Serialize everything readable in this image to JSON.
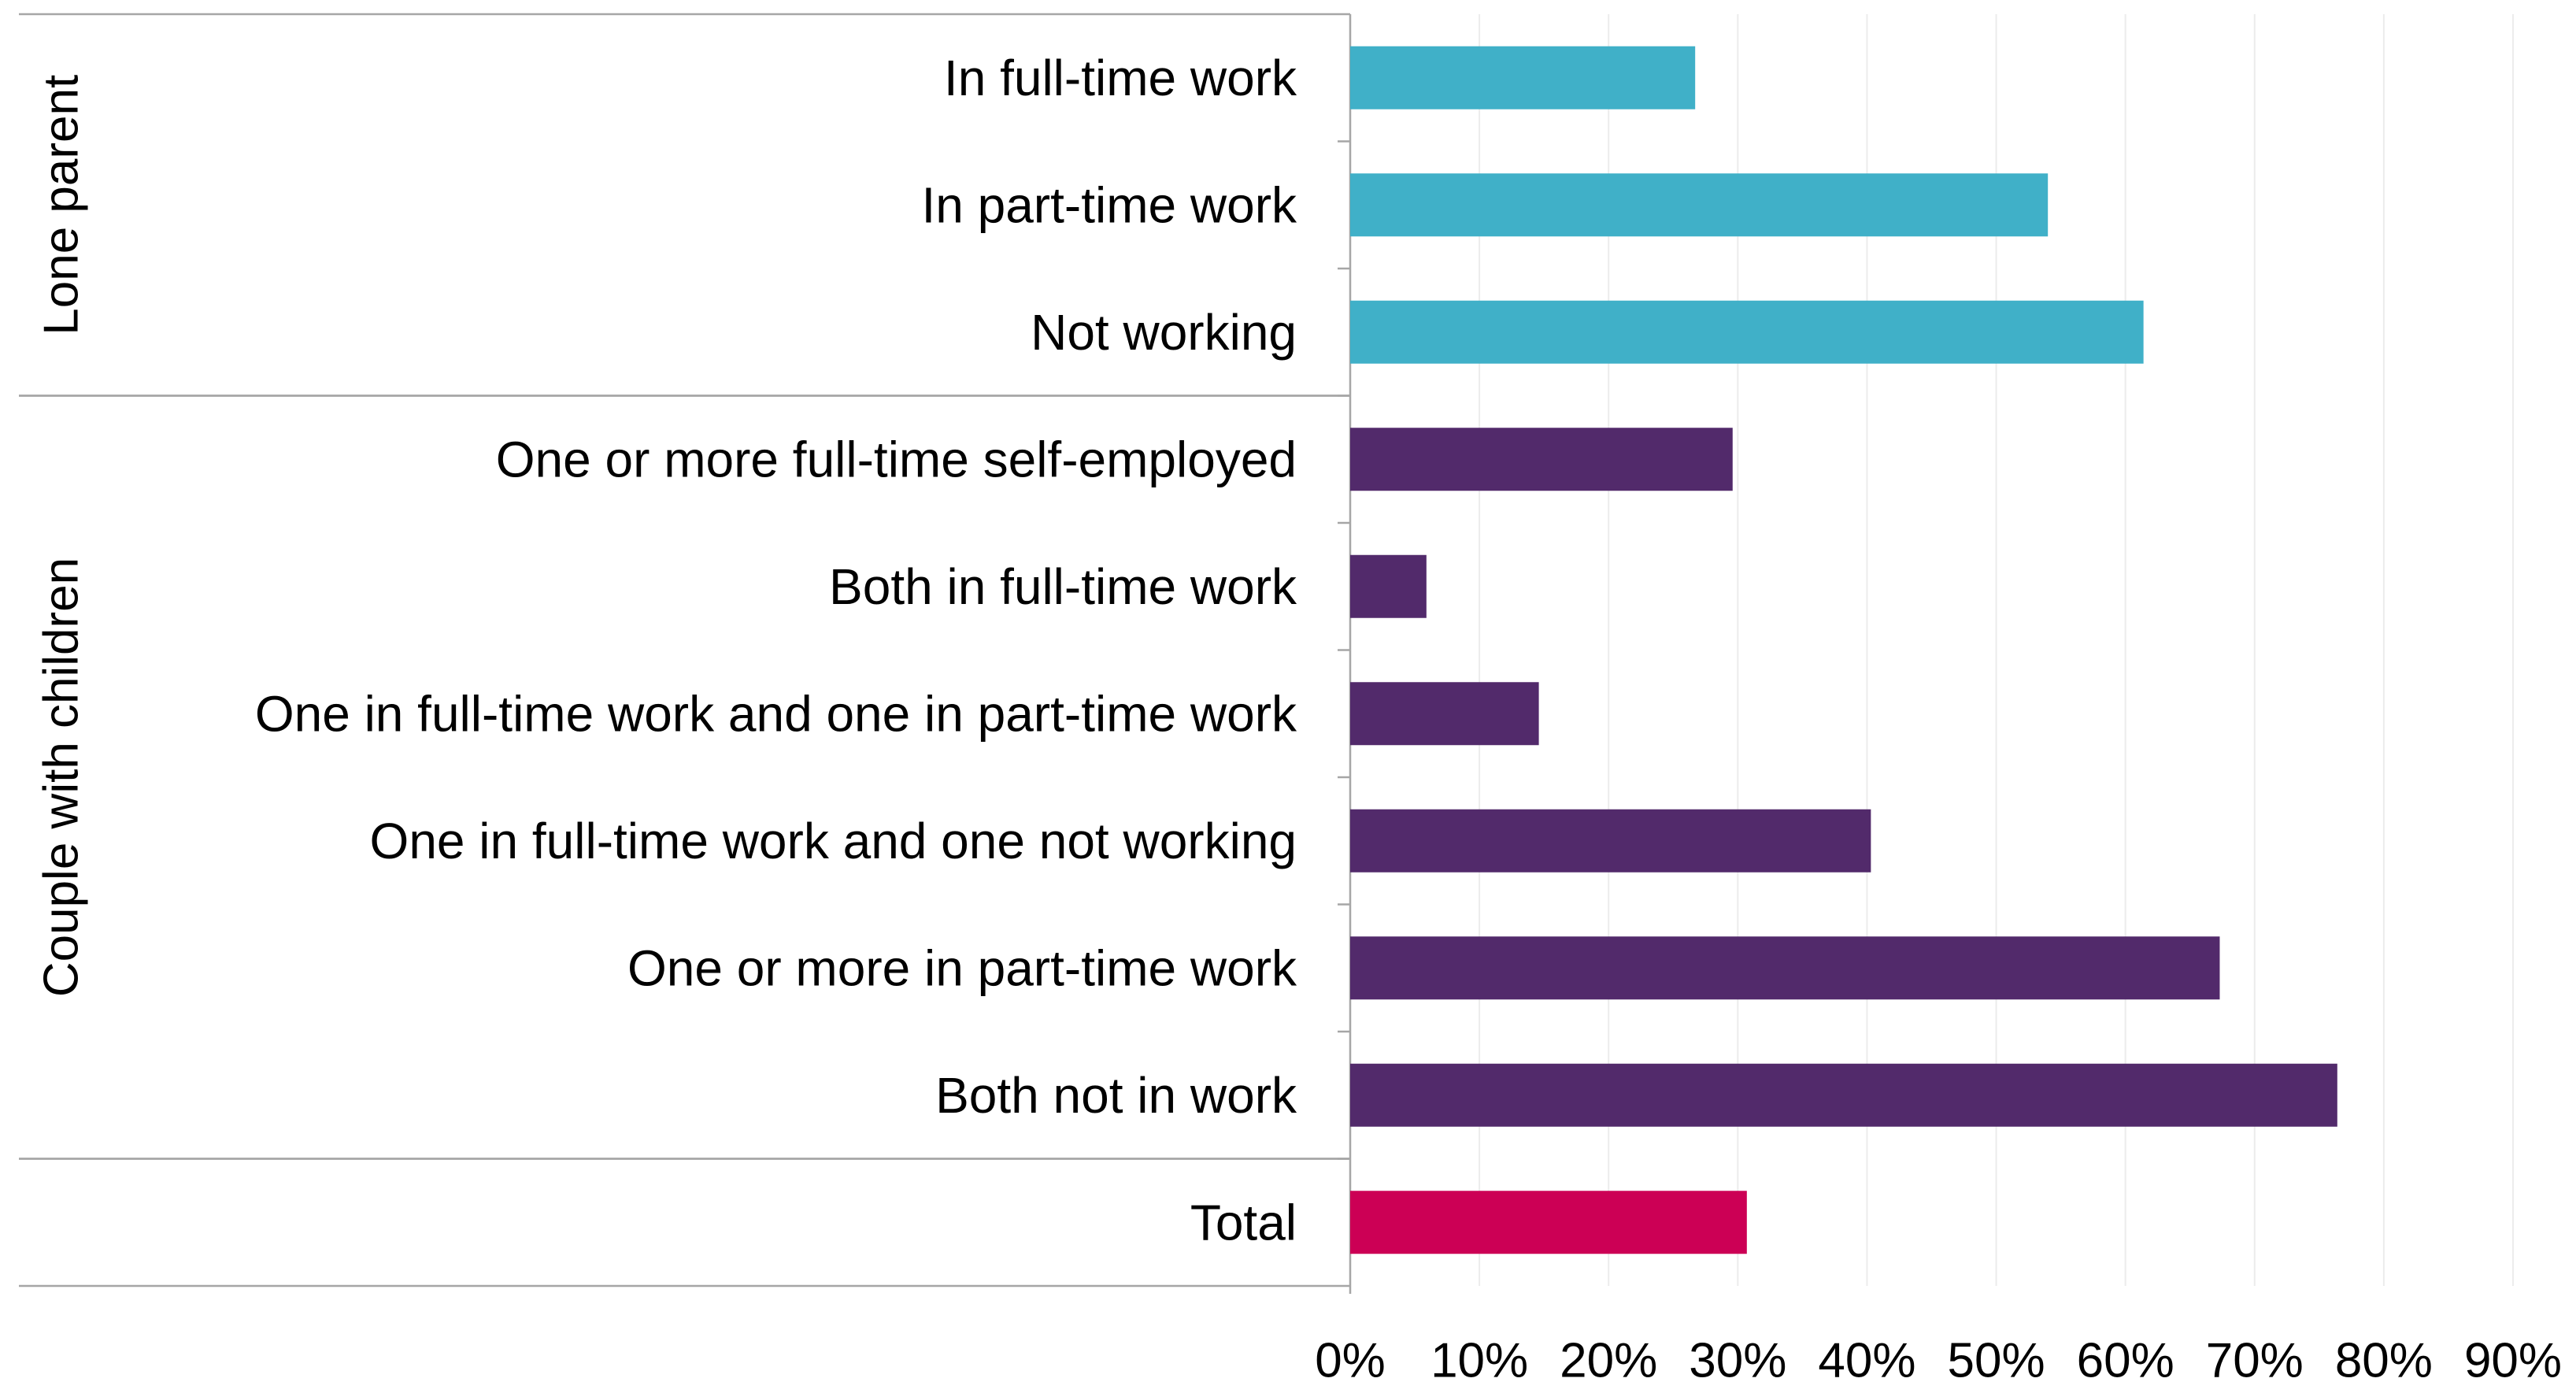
{
  "chart_data": {
    "type": "bar",
    "orientation": "horizontal",
    "title": "",
    "xlabel": "",
    "ylabel": "",
    "xlim": [
      0,
      90
    ],
    "x_ticks": [
      "0%",
      "10%",
      "20%",
      "30%",
      "40%",
      "50%",
      "60%",
      "70%",
      "80%",
      "90%"
    ],
    "grid": "vertical",
    "legend": "none",
    "groups": [
      {
        "label": "Lone parent",
        "start": 0,
        "end": 2
      },
      {
        "label": "Couple with children",
        "start": 3,
        "end": 8
      },
      {
        "label": "",
        "start": 9,
        "end": 9
      }
    ],
    "categories": [
      "In full-time work",
      "In part-time work",
      "Not working",
      "One or more full-time self-employed",
      "Both in full-time work",
      "One in full-time work and one in part-time work",
      "One in full-time work and one not working",
      "One or more in part-time work",
      "Both not in work",
      "Total"
    ],
    "values": [
      26.7,
      54.0,
      61.4,
      29.6,
      5.9,
      14.6,
      40.3,
      67.3,
      76.4,
      30.7
    ],
    "colors": [
      "#40b0c8",
      "#40b0c8",
      "#40b0c8",
      "#522a6b",
      "#522a6b",
      "#522a6b",
      "#522a6b",
      "#522a6b",
      "#522a6b",
      "#cc0055"
    ]
  }
}
